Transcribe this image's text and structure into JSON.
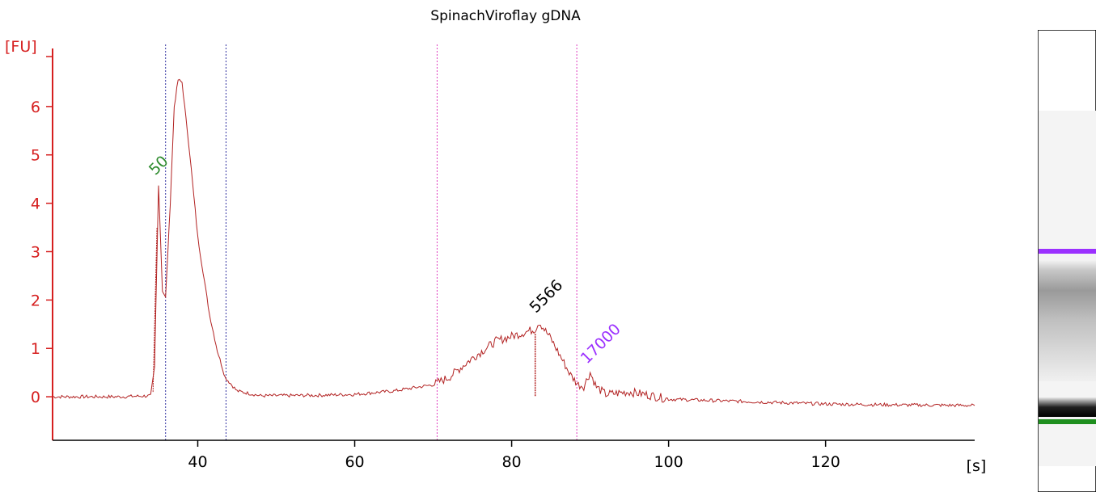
{
  "chart_data": {
    "type": "line",
    "title": "SpinachViroflay gDNA",
    "ylabel": "[FU]",
    "xlabel": "[s]",
    "xlim": [
      21.5,
      139
    ],
    "ylim": [
      -0.9,
      7.2
    ],
    "x_ticks": [
      40,
      60,
      80,
      100,
      120
    ],
    "y_ticks": [
      0,
      1,
      2,
      3,
      4,
      5,
      6
    ],
    "series": [
      {
        "color": "#b22222",
        "points": [
          [
            21.5,
            0.0
          ],
          [
            30,
            0.0
          ],
          [
            34.0,
            0.02
          ],
          [
            34.5,
            0.6
          ],
          [
            35.0,
            4.4
          ],
          [
            35.5,
            2.2
          ],
          [
            35.9,
            2.05
          ],
          [
            36.5,
            4.0
          ],
          [
            37.0,
            6.0
          ],
          [
            37.5,
            6.55
          ],
          [
            38.0,
            6.5
          ],
          [
            39.0,
            5.0
          ],
          [
            40.0,
            3.3
          ],
          [
            41.5,
            1.7
          ],
          [
            42.5,
            0.95
          ],
          [
            43.5,
            0.4
          ],
          [
            45.0,
            0.12
          ],
          [
            48.0,
            0.02
          ],
          [
            55.0,
            0.03
          ],
          [
            60.0,
            0.05
          ],
          [
            65.0,
            0.12
          ],
          [
            70.0,
            0.25
          ],
          [
            72.0,
            0.4
          ],
          [
            75.0,
            0.8
          ],
          [
            78.0,
            1.15
          ],
          [
            81.0,
            1.3
          ],
          [
            83.0,
            1.4
          ],
          [
            83.5,
            1.55
          ],
          [
            85.0,
            1.2
          ],
          [
            86.0,
            0.9
          ],
          [
            87.5,
            0.45
          ],
          [
            88.5,
            0.25
          ],
          [
            89.2,
            0.22
          ],
          [
            90.0,
            0.5
          ],
          [
            90.8,
            0.2
          ],
          [
            92.0,
            0.05
          ],
          [
            95.0,
            0.1
          ],
          [
            97.0,
            0.05
          ],
          [
            100.0,
            -0.05
          ],
          [
            110.0,
            -0.1
          ],
          [
            120.0,
            -0.15
          ],
          [
            130.0,
            -0.17
          ],
          [
            139.0,
            -0.18
          ]
        ]
      }
    ],
    "markers": [
      {
        "label": "50",
        "x": 35.0,
        "y": 4.4,
        "color": "#2e8b2e"
      },
      {
        "label": "5566",
        "x": 83.5,
        "y": 1.55,
        "color": "#000000"
      },
      {
        "label": "17000",
        "x": 90.0,
        "y": 0.5,
        "color": "#9b30ff"
      }
    ],
    "vertical_lines": [
      {
        "x": 35.9,
        "color": "#3030a0"
      },
      {
        "x": 43.6,
        "color": "#3030a0"
      },
      {
        "x": 70.5,
        "color": "#e040c0"
      },
      {
        "x": 88.3,
        "color": "#e040c0"
      }
    ],
    "dropout": {
      "x": 83.0,
      "y_top": 1.3,
      "y_bottom": 0.0
    },
    "axis_color": "#d61f1f",
    "gel": {
      "background": "#f4f4f4",
      "bands": [
        {
          "kind": "upper-marker",
          "color": "#9b30ff"
        },
        {
          "kind": "sample-smear",
          "color": "#b0b0b0"
        },
        {
          "kind": "lower-marker",
          "color": "#1e8f1e"
        }
      ]
    }
  }
}
